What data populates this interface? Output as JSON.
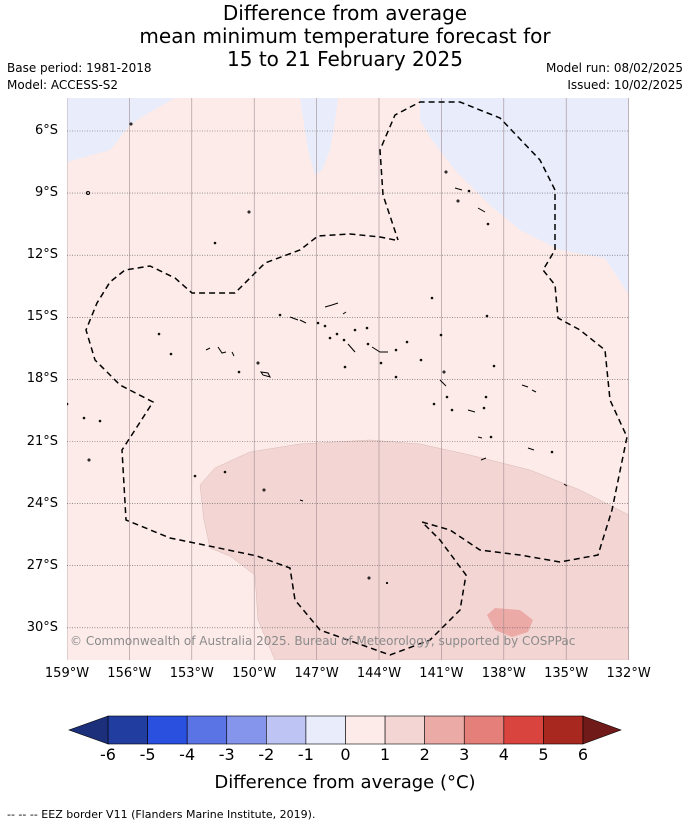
{
  "title": {
    "line1": "Difference from average",
    "line2": "mean minimum temperature forecast for",
    "line3": "15 to 21 February 2025"
  },
  "meta": {
    "base_period": "Base period: 1981-2018",
    "model": "Model: ACCESS-S2",
    "model_run": "Model run: 08/02/2025",
    "issued": "Issued: 10/02/2025"
  },
  "map": {
    "lon_labels": [
      "159°W",
      "156°W",
      "153°W",
      "150°W",
      "147°W",
      "144°W",
      "141°W",
      "138°W",
      "135°W",
      "132°W"
    ],
    "lat_labels": [
      "6°S",
      "9°S",
      "12°S",
      "15°S",
      "18°S",
      "21°S",
      "24°S",
      "27°S",
      "30°S"
    ],
    "copyright": "© Commonwealth of Australia 2025. Bureau of Meteorology, supported by COSPPac",
    "colors": {
      "neg1_0": "#e8ecfb",
      "zero_1": "#fcebe9",
      "one_2": "#f3d6d3",
      "two_3": "#ebaaa6",
      "grid": "#a08a90",
      "eez": "#000000"
    }
  },
  "colorbar": {
    "ticks": [
      "-6",
      "-5",
      "-4",
      "-3",
      "-2",
      "-1",
      "0",
      "1",
      "2",
      "3",
      "4",
      "5",
      "6"
    ],
    "colors": [
      "#213da0",
      "#2a50e0",
      "#5a74e5",
      "#8595ec",
      "#bec5f4",
      "#e8ecfb",
      "#fcebe9",
      "#f3d6d3",
      "#ebaaa6",
      "#e57f79",
      "#d9443f",
      "#a8281f"
    ],
    "under_color": "#1c2f7a",
    "over_color": "#701a1a",
    "title": "Difference from average (°C)"
  },
  "footer": "-- -- -- EEZ border V11 (Flanders Marine Institute, 2019)."
}
